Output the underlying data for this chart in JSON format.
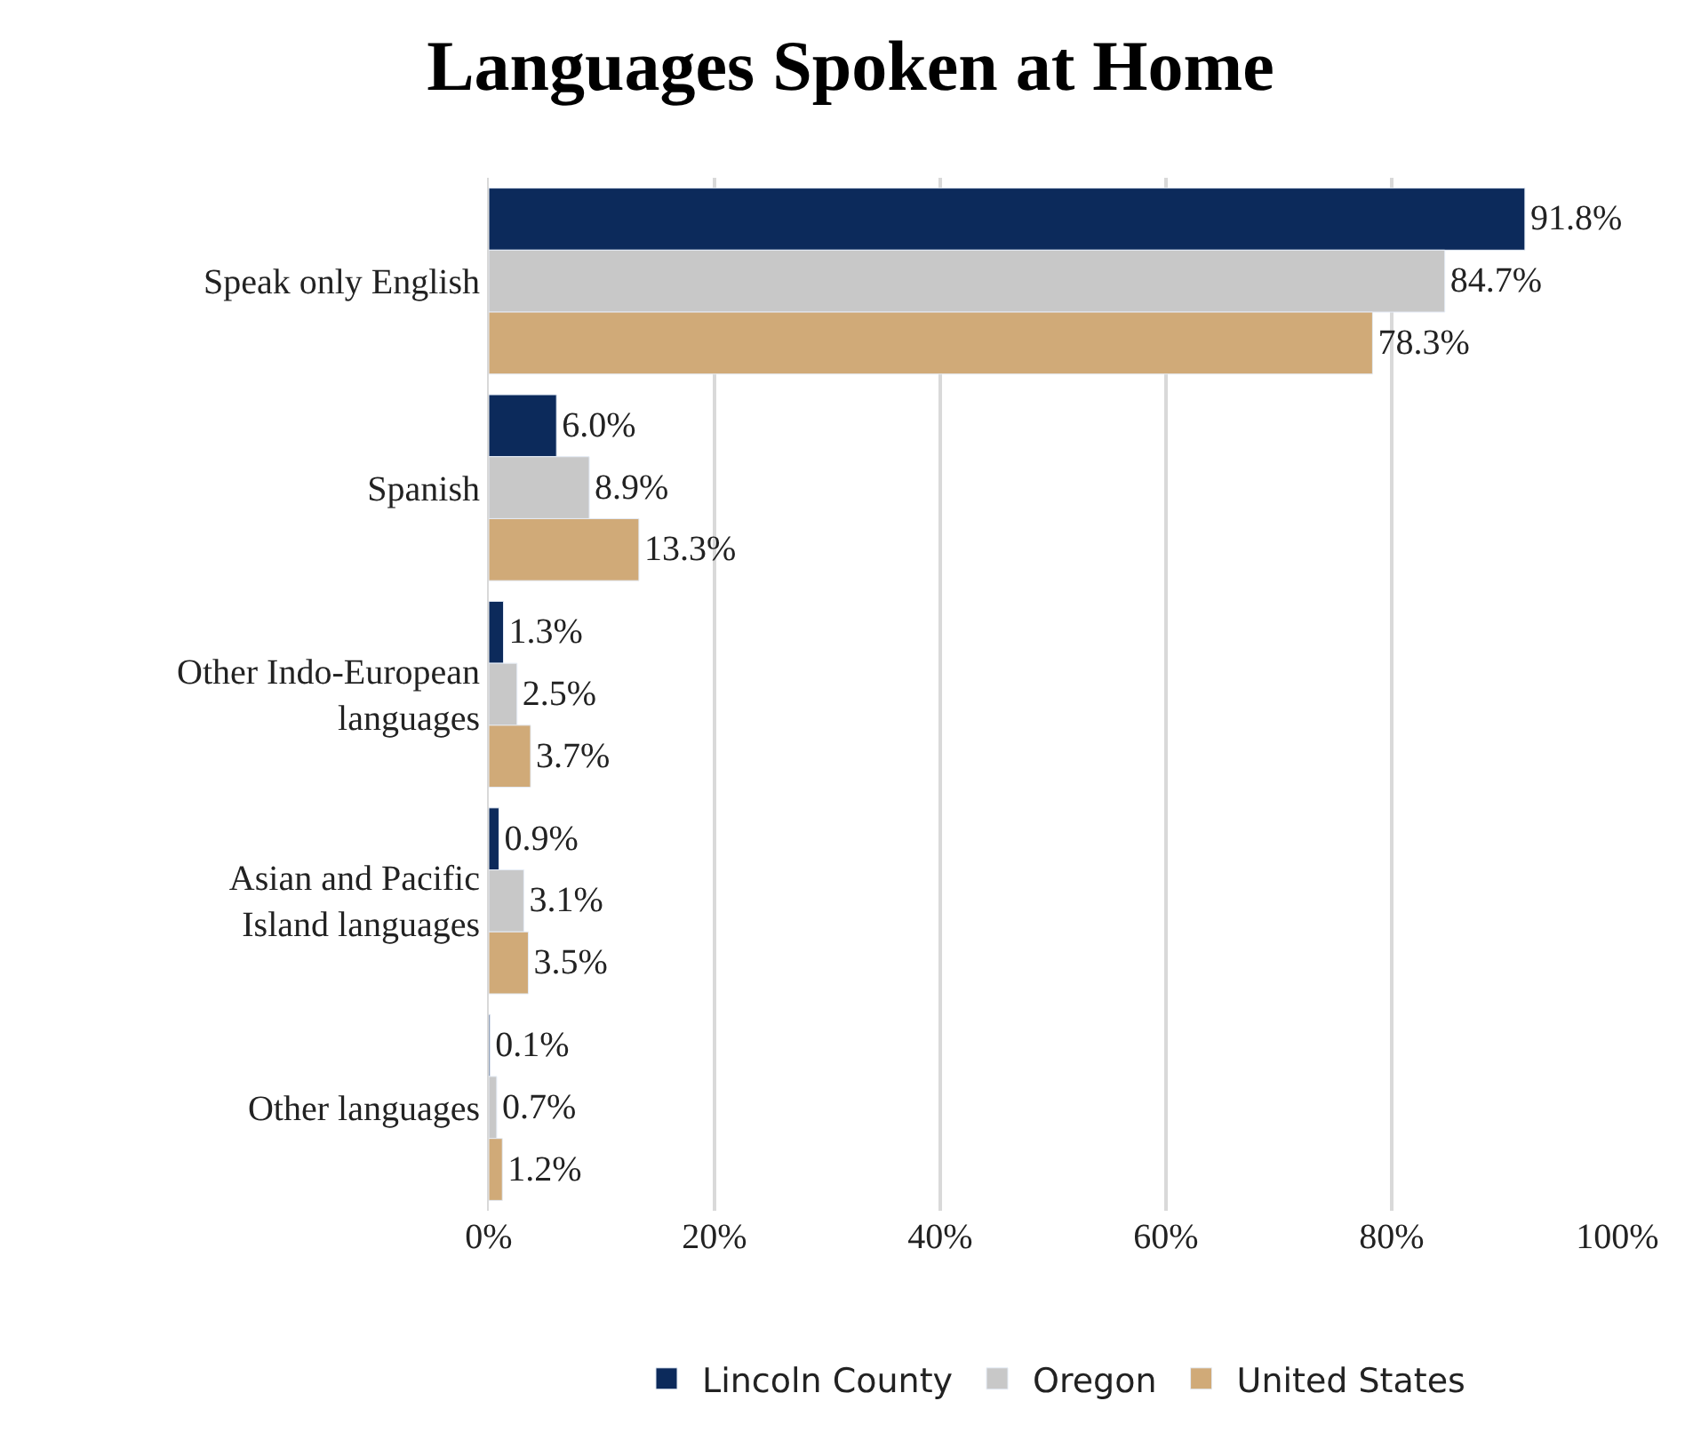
{
  "chart_data": {
    "type": "bar",
    "orientation": "horizontal",
    "title": "Languages Spoken at Home",
    "categories": [
      "Speak only English",
      "Spanish",
      "Other Indo-European languages",
      "Asian and Pacific Island languages",
      "Other languages"
    ],
    "series": [
      {
        "name": "Lincoln County",
        "color": "#0c2a5b",
        "values": [
          91.8,
          6.0,
          1.3,
          0.9,
          0.1
        ],
        "value_labels": [
          "91.8%",
          "6.0%",
          "1.3%",
          "0.9%",
          "0.1%"
        ]
      },
      {
        "name": "Oregon",
        "color": "#c8c8c8",
        "values": [
          84.7,
          8.9,
          2.5,
          3.1,
          0.7
        ],
        "value_labels": [
          "84.7%",
          "8.9%",
          "2.5%",
          "3.1%",
          "0.7%"
        ]
      },
      {
        "name": "United States",
        "color": "#d0aa78",
        "values": [
          78.3,
          13.3,
          3.7,
          3.5,
          1.2
        ],
        "value_labels": [
          "78.3%",
          "13.3%",
          "3.7%",
          "3.5%",
          "1.2%"
        ]
      }
    ],
    "xlim": [
      0,
      100
    ],
    "xticks": [
      {
        "value": 0,
        "label": "0%"
      },
      {
        "value": 20,
        "label": "20%"
      },
      {
        "value": 40,
        "label": "40%"
      },
      {
        "value": 60,
        "label": "60%"
      },
      {
        "value": 80,
        "label": "80%"
      },
      {
        "value": 100,
        "label": "100%"
      }
    ],
    "grid": "x",
    "legend": "bottom"
  }
}
